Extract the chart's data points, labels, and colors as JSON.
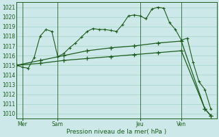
{
  "xlabel": "Pression niveau de la mer( hPa )",
  "bg_color": "#cce8e8",
  "grid_color": "#99ccbb",
  "line_color": "#1a5c1a",
  "ylim": [
    1009.5,
    1021.5
  ],
  "xlim": [
    0,
    34
  ],
  "yticks": [
    1010,
    1011,
    1012,
    1013,
    1014,
    1015,
    1016,
    1017,
    1018,
    1019,
    1020,
    1021
  ],
  "day_labels": [
    "Mer",
    "Sam",
    "Jeu",
    "Ven"
  ],
  "day_positions": [
    1,
    7,
    21,
    28
  ],
  "line1_x": [
    0,
    1,
    2,
    3,
    4,
    5,
    6,
    7,
    8,
    9,
    10,
    11,
    12,
    13,
    14,
    15,
    16,
    17,
    18,
    19,
    20,
    21,
    22,
    23,
    24,
    25,
    26,
    27,
    28,
    29,
    30,
    31,
    32,
    33
  ],
  "line1_y": [
    1015.0,
    1014.8,
    1014.7,
    1015.8,
    1018.0,
    1018.7,
    1018.5,
    1015.9,
    1016.2,
    1016.8,
    1017.3,
    1017.9,
    1018.5,
    1018.8,
    1018.7,
    1018.7,
    1018.6,
    1018.5,
    1019.2,
    1020.1,
    1020.2,
    1020.1,
    1019.8,
    1020.8,
    1021.0,
    1020.9,
    1019.4,
    1018.7,
    1017.6,
    1017.8,
    1015.3,
    1013.3,
    1012.5,
    1010.5
  ],
  "line2_x": [
    0,
    4,
    8,
    12,
    16,
    20,
    24,
    28,
    32,
    33
  ],
  "line2_y": [
    1015.0,
    1015.5,
    1016.0,
    1016.5,
    1016.8,
    1017.0,
    1017.3,
    1017.5,
    1010.5,
    1009.8
  ],
  "line3_x": [
    0,
    4,
    8,
    12,
    16,
    20,
    24,
    28,
    32,
    33
  ],
  "line3_y": [
    1015.0,
    1015.2,
    1015.5,
    1015.7,
    1015.9,
    1016.1,
    1016.3,
    1016.5,
    1010.5,
    1009.8
  ],
  "figsize": [
    3.2,
    2.0
  ],
  "dpi": 100
}
